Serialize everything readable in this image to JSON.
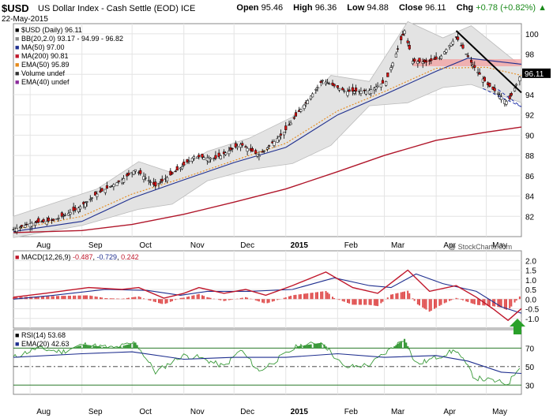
{
  "header": {
    "symbol": "$USD",
    "name": "US Dollar Index - Cash Settle (EOD)",
    "exchange": "ICE",
    "date": "22-May-2015",
    "open_label": "Open",
    "open": "95.46",
    "high_label": "High",
    "high": "96.36",
    "low_label": "Low",
    "low": "94.88",
    "close_label": "Close",
    "close": "96.11",
    "chg_label": "Chg",
    "chg": "+0.78 (+0.82%)",
    "chg_arrow": "▲",
    "credit": "@ StockCharts.com"
  },
  "legend_price": [
    {
      "text": "$USD (Daily) 96.11",
      "color": "#000000"
    },
    {
      "text": "BB(20,2.0) 93.17 - 94.99 - 96.82",
      "color": "#888888"
    },
    {
      "text": "MA(50) 97.00",
      "color": "#1f2f8f"
    },
    {
      "text": "MA(200) 90.81",
      "color": "#c0162a"
    },
    {
      "text": "EMA(50) 95.89",
      "color": "#e58a1a"
    },
    {
      "text": "Volume undef",
      "color": "#333333"
    },
    {
      "text": "EMA(40) undef",
      "color": "#8a2a9a"
    }
  ],
  "legend_macd": {
    "label": "MACD(12,26,9)",
    "v1": "-0.487",
    "v2": "-0.729",
    "v3": "0.242"
  },
  "legend_rsi": {
    "rsi": "RSI(14) 53.68",
    "ema": "EMA(20) 42.63"
  },
  "colors": {
    "price": "#000000",
    "ma50": "#1f2f8f",
    "ma200": "#b0162a",
    "ema50": "#e58a1a",
    "bb_fill": "#e3e3e3",
    "macd": "#c0162a",
    "signal": "#1f2f8f",
    "hist": "#e05050",
    "rsi": "#000000",
    "rsi_fill": "#3a9a3a",
    "zone": "#f3a0a0",
    "arrow": "#2aa02a"
  },
  "x_labels": [
    "Aug",
    "Sep",
    "Oct",
    "Nov",
    "Dec",
    "2015",
    "Feb",
    "Mar",
    "Apr",
    "May"
  ],
  "chart_data": [
    {
      "type": "line",
      "title": "$USD (Daily)",
      "x_range": [
        "2014-07-22",
        "2015-05-22"
      ],
      "ylim": [
        80,
        101
      ],
      "y_ticks": [
        82,
        84,
        86,
        88,
        90,
        92,
        94,
        96,
        98,
        100
      ],
      "grid": true,
      "series": [
        {
          "name": "$USD",
          "points": [
            [
              "2014-07-22",
              80.7
            ],
            [
              "2014-08-01",
              81.3
            ],
            [
              "2014-08-15",
              81.6
            ],
            [
              "2014-08-29",
              82.7
            ],
            [
              "2014-09-10",
              84.2
            ],
            [
              "2014-09-25",
              85.6
            ],
            [
              "2014-10-03",
              86.6
            ],
            [
              "2014-10-15",
              85.0
            ],
            [
              "2014-10-31",
              86.9
            ],
            [
              "2014-11-07",
              87.9
            ],
            [
              "2014-11-20",
              87.7
            ],
            [
              "2014-12-05",
              89.1
            ],
            [
              "2014-12-16",
              88.0
            ],
            [
              "2014-12-31",
              90.3
            ],
            [
              "2015-01-08",
              92.1
            ],
            [
              "2015-01-23",
              95.4
            ],
            [
              "2015-02-06",
              94.3
            ],
            [
              "2015-02-20",
              94.4
            ],
            [
              "2015-03-02",
              95.3
            ],
            [
              "2015-03-13",
              100.3
            ],
            [
              "2015-03-18",
              97.3
            ],
            [
              "2015-03-26",
              97.2
            ],
            [
              "2015-04-03",
              97.6
            ],
            [
              "2015-04-13",
              99.7
            ],
            [
              "2015-04-23",
              96.9
            ],
            [
              "2015-05-01",
              95.1
            ],
            [
              "2015-05-14",
              93.2
            ],
            [
              "2015-05-22",
              96.1
            ]
          ]
        },
        {
          "name": "MA(50)",
          "points": [
            [
              "2014-07-22",
              80.5
            ],
            [
              "2014-09-01",
              81.5
            ],
            [
              "2014-10-01",
              83.8
            ],
            [
              "2014-11-01",
              85.6
            ],
            [
              "2014-12-01",
              87.3
            ],
            [
              "2015-01-01",
              88.8
            ],
            [
              "2015-02-01",
              92.0
            ],
            [
              "2015-03-01",
              94.0
            ],
            [
              "2015-04-01",
              96.3
            ],
            [
              "2015-04-20",
              97.6
            ],
            [
              "2015-05-22",
              97.0
            ]
          ]
        },
        {
          "name": "MA(200)",
          "points": [
            [
              "2014-07-22",
              80.4
            ],
            [
              "2014-09-01",
              80.6
            ],
            [
              "2014-10-01",
              81.2
            ],
            [
              "2014-11-01",
              82.2
            ],
            [
              "2014-12-01",
              83.4
            ],
            [
              "2015-01-01",
              84.7
            ],
            [
              "2015-02-01",
              86.4
            ],
            [
              "2015-03-01",
              88.0
            ],
            [
              "2015-04-01",
              89.5
            ],
            [
              "2015-05-01",
              90.3
            ],
            [
              "2015-05-22",
              90.8
            ]
          ]
        },
        {
          "name": "EMA(50)",
          "points": [
            [
              "2014-07-22",
              80.7
            ],
            [
              "2014-09-01",
              82.0
            ],
            [
              "2014-10-01",
              84.2
            ],
            [
              "2014-11-01",
              85.8
            ],
            [
              "2014-12-01",
              87.5
            ],
            [
              "2015-01-01",
              89.2
            ],
            [
              "2015-02-01",
              92.4
            ],
            [
              "2015-03-01",
              94.3
            ],
            [
              "2015-04-01",
              96.6
            ],
            [
              "2015-05-01",
              96.7
            ],
            [
              "2015-05-22",
              95.9
            ]
          ]
        }
      ],
      "bollinger": {
        "upper": [
          [
            "2014-07-22",
            82.0
          ],
          [
            "2014-09-10",
            84.7
          ],
          [
            "2014-10-05",
            87.4
          ],
          [
            "2014-10-25",
            86.3
          ],
          [
            "2014-11-15",
            88.4
          ],
          [
            "2014-12-10",
            89.7
          ],
          [
            "2015-01-05",
            91.8
          ],
          [
            "2015-01-28",
            95.9
          ],
          [
            "2015-02-20",
            95.3
          ],
          [
            "2015-03-15",
            101.2
          ],
          [
            "2015-04-05",
            99.6
          ],
          [
            "2015-04-22",
            100.8
          ],
          [
            "2015-05-22",
            96.8
          ]
        ],
        "lower": [
          [
            "2014-07-22",
            79.9
          ],
          [
            "2014-09-01",
            81.1
          ],
          [
            "2014-10-05",
            82.7
          ],
          [
            "2014-10-25",
            83.2
          ],
          [
            "2014-11-15",
            85.5
          ],
          [
            "2014-12-10",
            86.6
          ],
          [
            "2015-01-05",
            87.2
          ],
          [
            "2015-01-28",
            89.0
          ],
          [
            "2015-02-20",
            92.9
          ],
          [
            "2015-03-15",
            93.2
          ],
          [
            "2015-04-05",
            94.7
          ],
          [
            "2015-04-22",
            95.0
          ],
          [
            "2015-05-22",
            93.2
          ]
        ]
      },
      "annotations": {
        "resistance_zone": [
          96.8,
          97.5
        ],
        "trendline_upper": [
          [
            "2015-04-13",
            100.3
          ],
          [
            "2015-05-22",
            94.2
          ]
        ],
        "trendline_lower": [
          [
            "2015-04-29",
            94.6
          ],
          [
            "2015-05-22",
            92.8
          ]
        ]
      }
    },
    {
      "type": "line",
      "title": "MACD(12,26,9)",
      "ylim": [
        -1.5,
        2.5
      ],
      "y_ticks": [
        -1.0,
        -0.5,
        0.0,
        0.5,
        1.0,
        1.5,
        2.0
      ],
      "series": [
        {
          "name": "MACD",
          "points": [
            [
              "2014-07-22",
              0.1
            ],
            [
              "2014-08-10",
              0.3
            ],
            [
              "2014-09-05",
              0.6
            ],
            [
              "2014-09-25",
              0.5
            ],
            [
              "2014-10-05",
              0.6
            ],
            [
              "2014-10-20",
              0.05
            ],
            [
              "2014-11-01",
              0.3
            ],
            [
              "2014-11-10",
              0.6
            ],
            [
              "2014-11-25",
              0.3
            ],
            [
              "2014-12-08",
              0.5
            ],
            [
              "2014-12-20",
              0.2
            ],
            [
              "2015-01-05",
              0.7
            ],
            [
              "2015-01-25",
              1.4
            ],
            [
              "2015-02-10",
              0.6
            ],
            [
              "2015-02-25",
              0.3
            ],
            [
              "2015-03-15",
              1.5
            ],
            [
              "2015-03-28",
              0.4
            ],
            [
              "2015-04-13",
              0.7
            ],
            [
              "2015-04-25",
              0.1
            ],
            [
              "2015-05-05",
              -0.5
            ],
            [
              "2015-05-14",
              -1.1
            ],
            [
              "2015-05-22",
              -0.49
            ]
          ]
        },
        {
          "name": "Signal",
          "points": [
            [
              "2014-07-22",
              0.0
            ],
            [
              "2014-08-15",
              0.2
            ],
            [
              "2014-09-15",
              0.5
            ],
            [
              "2014-10-10",
              0.45
            ],
            [
              "2014-10-30",
              0.2
            ],
            [
              "2014-11-15",
              0.4
            ],
            [
              "2014-12-10",
              0.4
            ],
            [
              "2015-01-05",
              0.5
            ],
            [
              "2015-01-30",
              1.1
            ],
            [
              "2015-02-20",
              0.7
            ],
            [
              "2015-03-05",
              0.6
            ],
            [
              "2015-03-20",
              1.3
            ],
            [
              "2015-04-05",
              0.8
            ],
            [
              "2015-04-25",
              0.4
            ],
            [
              "2015-05-10",
              -0.4
            ],
            [
              "2015-05-22",
              -0.73
            ]
          ]
        }
      ],
      "histogram_note": "MACD - Signal, last 0.242"
    },
    {
      "type": "line",
      "title": "RSI(14)",
      "ylim": [
        20,
        90
      ],
      "y_ticks": [
        30,
        50,
        70
      ],
      "series": [
        {
          "name": "RSI(14)",
          "points": [
            [
              "2014-07-22",
              60
            ],
            [
              "2014-08-05",
              70
            ],
            [
              "2014-08-20",
              66
            ],
            [
              "2014-09-02",
              74
            ],
            [
              "2014-09-20",
              70
            ],
            [
              "2014-10-03",
              76
            ],
            [
              "2014-10-15",
              44
            ],
            [
              "2014-10-31",
              62
            ],
            [
              "2014-11-10",
              60
            ],
            [
              "2014-11-25",
              50
            ],
            [
              "2014-12-05",
              68
            ],
            [
              "2014-12-16",
              45
            ],
            [
              "2015-01-08",
              72
            ],
            [
              "2015-01-23",
              76
            ],
            [
              "2015-02-05",
              49
            ],
            [
              "2015-02-20",
              52
            ],
            [
              "2015-03-13",
              80
            ],
            [
              "2015-03-20",
              52
            ],
            [
              "2015-04-13",
              68
            ],
            [
              "2015-04-24",
              38
            ],
            [
              "2015-05-07",
              34
            ],
            [
              "2015-05-14",
              31
            ],
            [
              "2015-05-22",
              53.7
            ]
          ]
        },
        {
          "name": "EMA(20)",
          "points": [
            [
              "2014-07-22",
              60
            ],
            [
              "2014-09-01",
              64
            ],
            [
              "2014-10-01",
              66
            ],
            [
              "2014-11-01",
              58
            ],
            [
              "2014-12-01",
              60
            ],
            [
              "2015-01-01",
              60
            ],
            [
              "2015-02-01",
              64
            ],
            [
              "2015-03-01",
              60
            ],
            [
              "2015-04-01",
              62
            ],
            [
              "2015-04-20",
              56
            ],
            [
              "2015-05-10",
              44
            ],
            [
              "2015-05-22",
              42.6
            ]
          ]
        }
      ]
    }
  ]
}
